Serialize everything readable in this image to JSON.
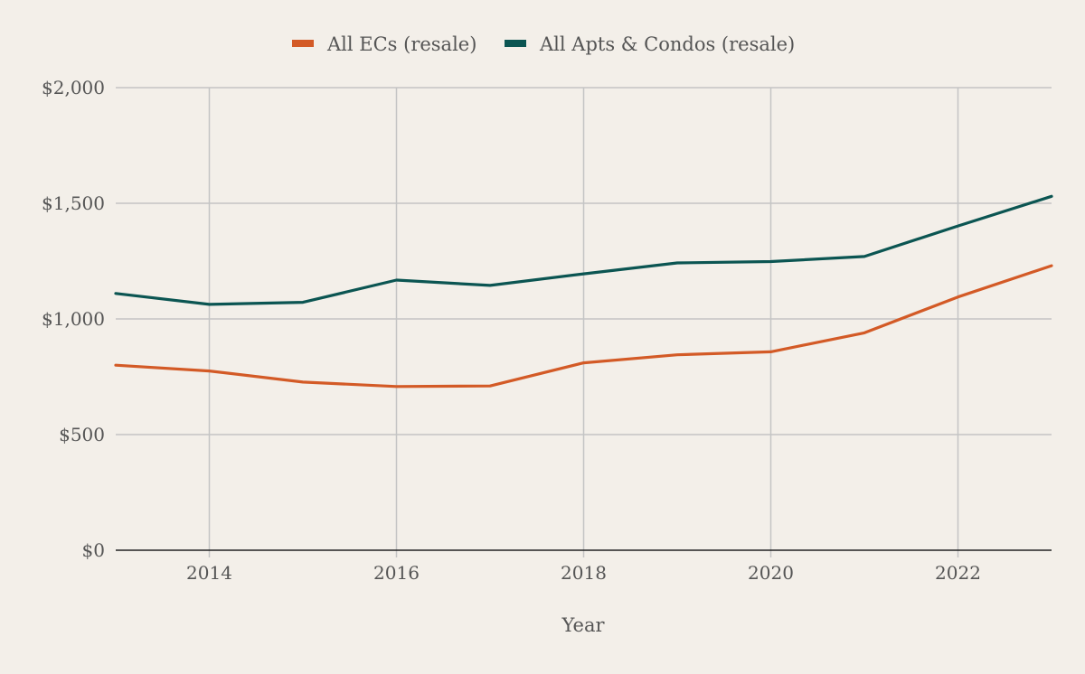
{
  "chart_data": {
    "type": "line",
    "title": "",
    "xlabel": "Year",
    "ylabel": "",
    "x": [
      2013,
      2014,
      2015,
      2016,
      2017,
      2018,
      2019,
      2020,
      2021,
      2022,
      2023
    ],
    "xlim": [
      2013,
      2023
    ],
    "ylim": [
      0,
      2000
    ],
    "x_ticks": [
      2014,
      2016,
      2018,
      2020,
      2022
    ],
    "x_tick_labels": [
      "2014",
      "2016",
      "2018",
      "2020",
      "2022"
    ],
    "y_ticks": [
      0,
      500,
      1000,
      1500,
      2000
    ],
    "y_tick_labels": [
      "$0",
      "$500",
      "$1,000",
      "$1,500",
      "$2,000"
    ],
    "grid": true,
    "legend_position": "top-center",
    "series": [
      {
        "name": "All ECs (resale)",
        "color": "#d35a26",
        "values": [
          800,
          775,
          727,
          708,
          710,
          810,
          845,
          858,
          940,
          1095,
          1230
        ]
      },
      {
        "name": "All Apts & Condos (resale)",
        "color": "#0b5552",
        "values": [
          1110,
          1063,
          1072,
          1168,
          1145,
          1195,
          1242,
          1248,
          1270,
          1402,
          1530
        ]
      }
    ],
    "colors": {
      "background": "#f3efe9",
      "grid": "#c4c4c4",
      "axis": "#222222",
      "text": "#555555"
    }
  }
}
